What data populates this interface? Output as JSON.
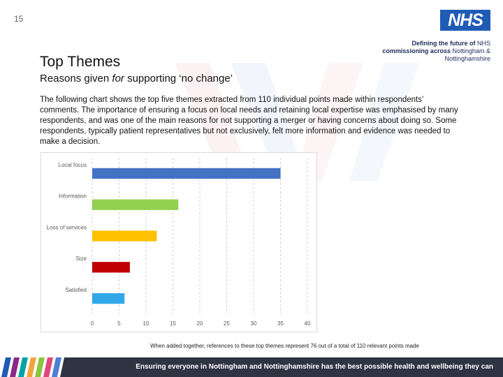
{
  "page": {
    "number": "15",
    "logo_text": "NHS",
    "strapline_bold_1": "Defining the future of",
    "strapline_plain_1": " NHS",
    "strapline_bold_2": "commissioning across",
    "strapline_plain_2": " Nottingham &",
    "strapline_line_3": "Nottinghamshire",
    "title": "Top Themes",
    "subtitle_pre": "Reasons given ",
    "subtitle_italic": "for",
    "subtitle_post": " supporting ‘no change’",
    "intro": "The following chart shows the top five themes extracted from 110 individual points made within respondents’ comments. The importance of ensuring a focus on local needs and retaining local expertise was emphasised by many respondents, and was one of the main reasons for not supporting a merger or having concerns about doing so. Some respondents, typically patient representatives but not exclusively, felt more information and evidence was needed to make a decision.",
    "footnote": "When added together, references to these top themes represent 76 out of a total of 110 relevant points made",
    "bottom_banner": "Ensuring everyone in Nottingham and Nottinghamshire has the best possible health and wellbeing they can"
  },
  "colors": {
    "nhs_blue": "#1f5bb5",
    "banner": "#2e3442"
  },
  "chart_data": {
    "type": "bar",
    "orientation": "horizontal",
    "categories": [
      "Local focus",
      "Information",
      "Loss of services",
      "Size",
      "Satisfied"
    ],
    "values": [
      35,
      16,
      12,
      7,
      6
    ],
    "bar_colors": [
      "#4472c4",
      "#92d050",
      "#ffc000",
      "#c00000",
      "#33a8e8"
    ],
    "xticks": [
      "0",
      "5",
      "10",
      "15",
      "20",
      "25",
      "30",
      "35",
      "40"
    ],
    "xlim": [
      0,
      40
    ],
    "grid": "vertical dashed",
    "title": "",
    "xlabel": "",
    "ylabel": ""
  }
}
